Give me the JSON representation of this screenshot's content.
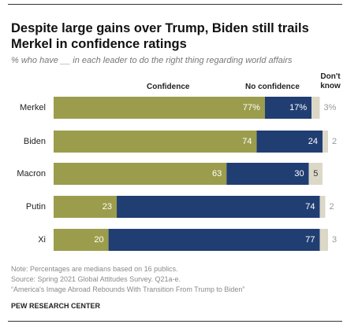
{
  "chart_data": {
    "type": "stacked-bar",
    "title": "Despite large gains over Trump, Biden still trails Merkel in confidence ratings",
    "subtitle": "% who have __ in each leader to do the right thing regarding world affairs",
    "categories": [
      "Merkel",
      "Biden",
      "Macron",
      "Putin",
      "Xi"
    ],
    "series": [
      {
        "name": "Confidence",
        "color": "#9b9d4c",
        "values": [
          77,
          74,
          63,
          23,
          20
        ],
        "value_labels": [
          "77%",
          "74",
          "63",
          "23",
          "20"
        ]
      },
      {
        "name": "No confidence",
        "color": "#213e73",
        "values": [
          17,
          24,
          30,
          74,
          77
        ],
        "value_labels": [
          "17%",
          "24",
          "30",
          "74",
          "77"
        ]
      },
      {
        "name": "Don't know",
        "color": "#dcd8c8",
        "values": [
          3,
          2,
          5,
          2,
          3
        ],
        "value_labels": [
          "3%",
          "2",
          "5",
          "2",
          "3"
        ]
      }
    ],
    "notes": [
      "Note: Percentages are medians based on 16 publics.",
      "Source: Spring 2021 Global Attitudes Survey. Q21a-e.",
      "“America's Image Abroad Rebounds With Transition From Trump to Biden”"
    ],
    "footer": "PEW RESEARCH CENTER"
  }
}
